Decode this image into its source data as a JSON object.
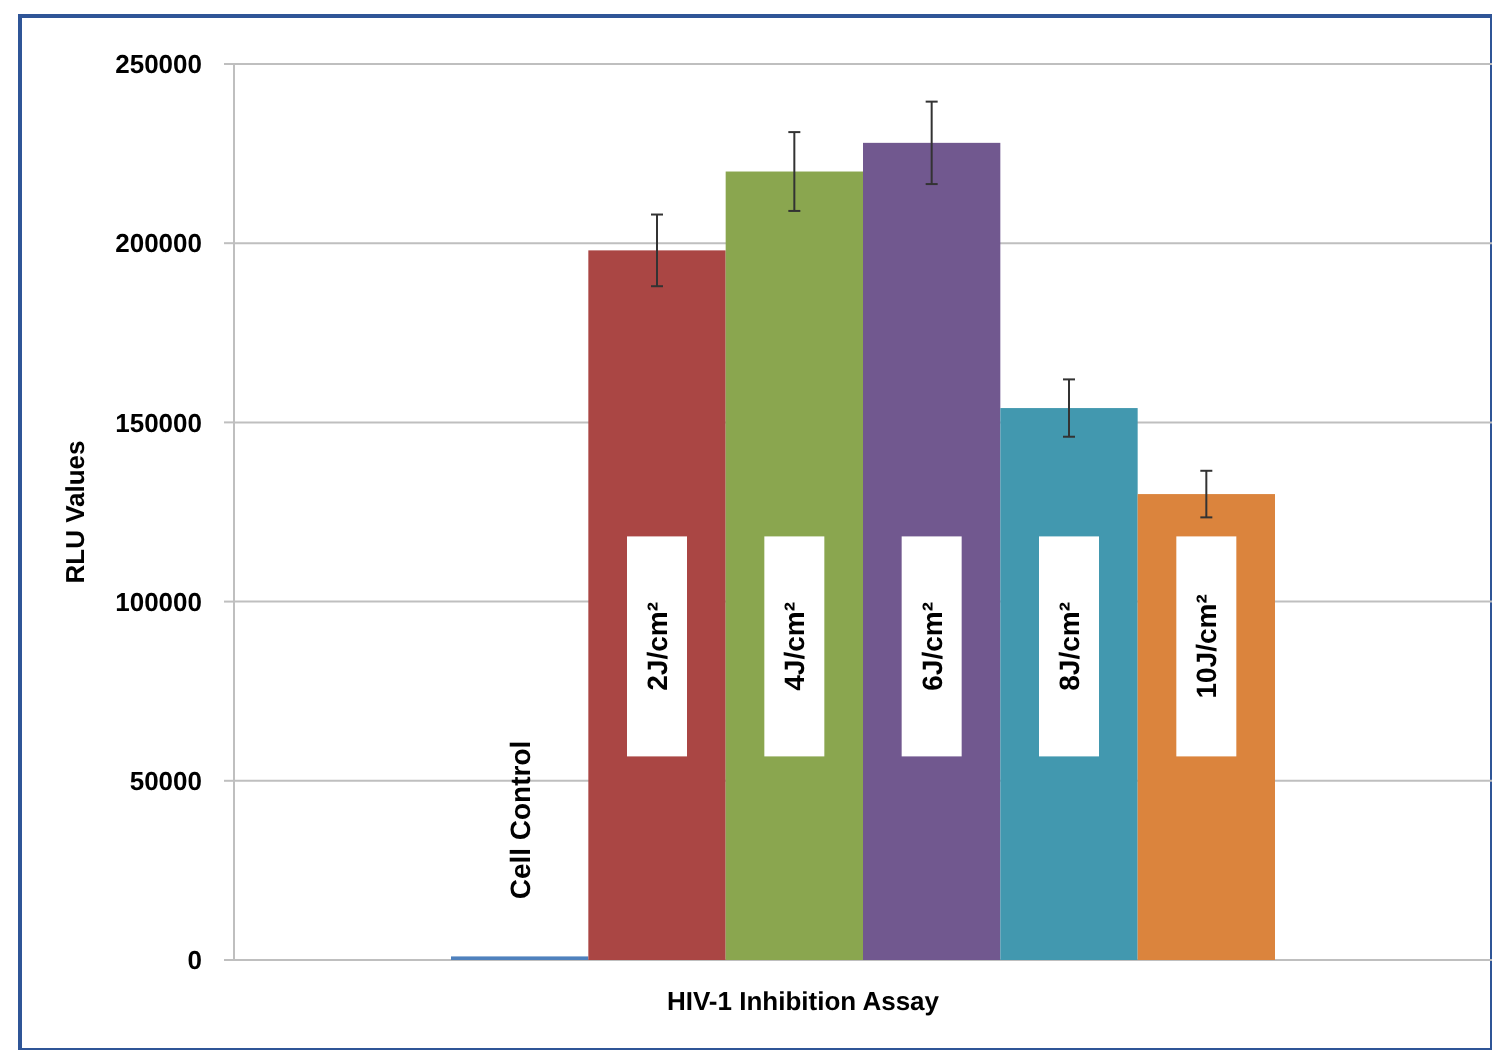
{
  "chart_data": {
    "type": "bar",
    "categories": [
      "HIV-1 Inhibition Assay"
    ],
    "ylabel": "RLU Values",
    "ylim": [
      0,
      250000
    ],
    "yticks": [
      0,
      50000,
      100000,
      150000,
      200000,
      250000
    ],
    "grid": "y",
    "series": [
      {
        "name": "Cell Control",
        "color": "#4f81bd",
        "values": [
          1000
        ],
        "errors": [
          null
        ]
      },
      {
        "name": "2J/cm²",
        "color": "#aa4644",
        "values": [
          198000
        ],
        "errors": [
          10000
        ]
      },
      {
        "name": "4J/cm²",
        "color": "#8aa64f",
        "values": [
          220000
        ],
        "errors": [
          11000
        ]
      },
      {
        "name": "6J/cm²",
        "color": "#71588f",
        "values": [
          228000
        ],
        "errors": [
          11500
        ]
      },
      {
        "name": "8J/cm²",
        "color": "#4298af",
        "values": [
          154000
        ],
        "errors": [
          8000
        ]
      },
      {
        "name": "10J/cm²",
        "color": "#db843d",
        "values": [
          130000
        ],
        "errors": [
          6500
        ]
      }
    ]
  }
}
